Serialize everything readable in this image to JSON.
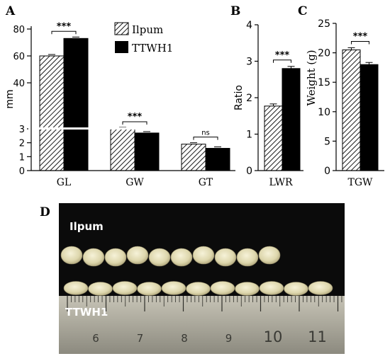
{
  "panels": {
    "A": "A",
    "B": "B",
    "C": "C",
    "D": "D"
  },
  "chart_data": [
    {
      "panel": "A",
      "type": "bar",
      "categories": [
        "GL",
        "GW",
        "GT"
      ],
      "series": [
        {
          "name": "Ilpum",
          "values": [
            6.0,
            3.6,
            1.9
          ],
          "pattern": "hatched"
        },
        {
          "name": "TTWH1",
          "values": [
            7.3,
            2.7,
            1.6
          ],
          "color": "#000000"
        }
      ],
      "ylabel": "mm",
      "yticks": [
        "0",
        "1",
        "2",
        "3",
        "40",
        "60",
        "80"
      ],
      "axis_break": true,
      "significance": [
        "***",
        "***",
        "ns"
      ],
      "legend": {
        "position": "top-right",
        "entries": [
          "Ilpum",
          "TTWH1"
        ]
      }
    },
    {
      "panel": "B",
      "type": "bar",
      "categories": [
        "LWR"
      ],
      "series": [
        {
          "name": "Ilpum",
          "values": [
            1.77
          ]
        },
        {
          "name": "TTWH1",
          "values": [
            2.8
          ]
        }
      ],
      "ylabel": "Ratio",
      "ylim": [
        0,
        4
      ],
      "yticks": [
        "0",
        "1",
        "2",
        "3",
        "4"
      ],
      "significance": [
        "***"
      ]
    },
    {
      "panel": "C",
      "type": "bar",
      "categories": [
        "TGW"
      ],
      "series": [
        {
          "name": "Ilpum",
          "values": [
            20.5
          ]
        },
        {
          "name": "TTWH1",
          "values": [
            18.0
          ]
        }
      ],
      "ylabel": "Weight (g)",
      "ylim": [
        0,
        25
      ],
      "yticks": [
        "0",
        "5",
        "10",
        "15",
        "20",
        "25"
      ],
      "significance": [
        "***"
      ]
    }
  ],
  "photo": {
    "label_top": "Ilpum",
    "label_bottom": "TTWH1",
    "ruler_numbers": [
      "6",
      "7",
      "8",
      "9",
      "10",
      "11"
    ],
    "grain_top_count": 10,
    "grain_bottom_count": 11
  }
}
